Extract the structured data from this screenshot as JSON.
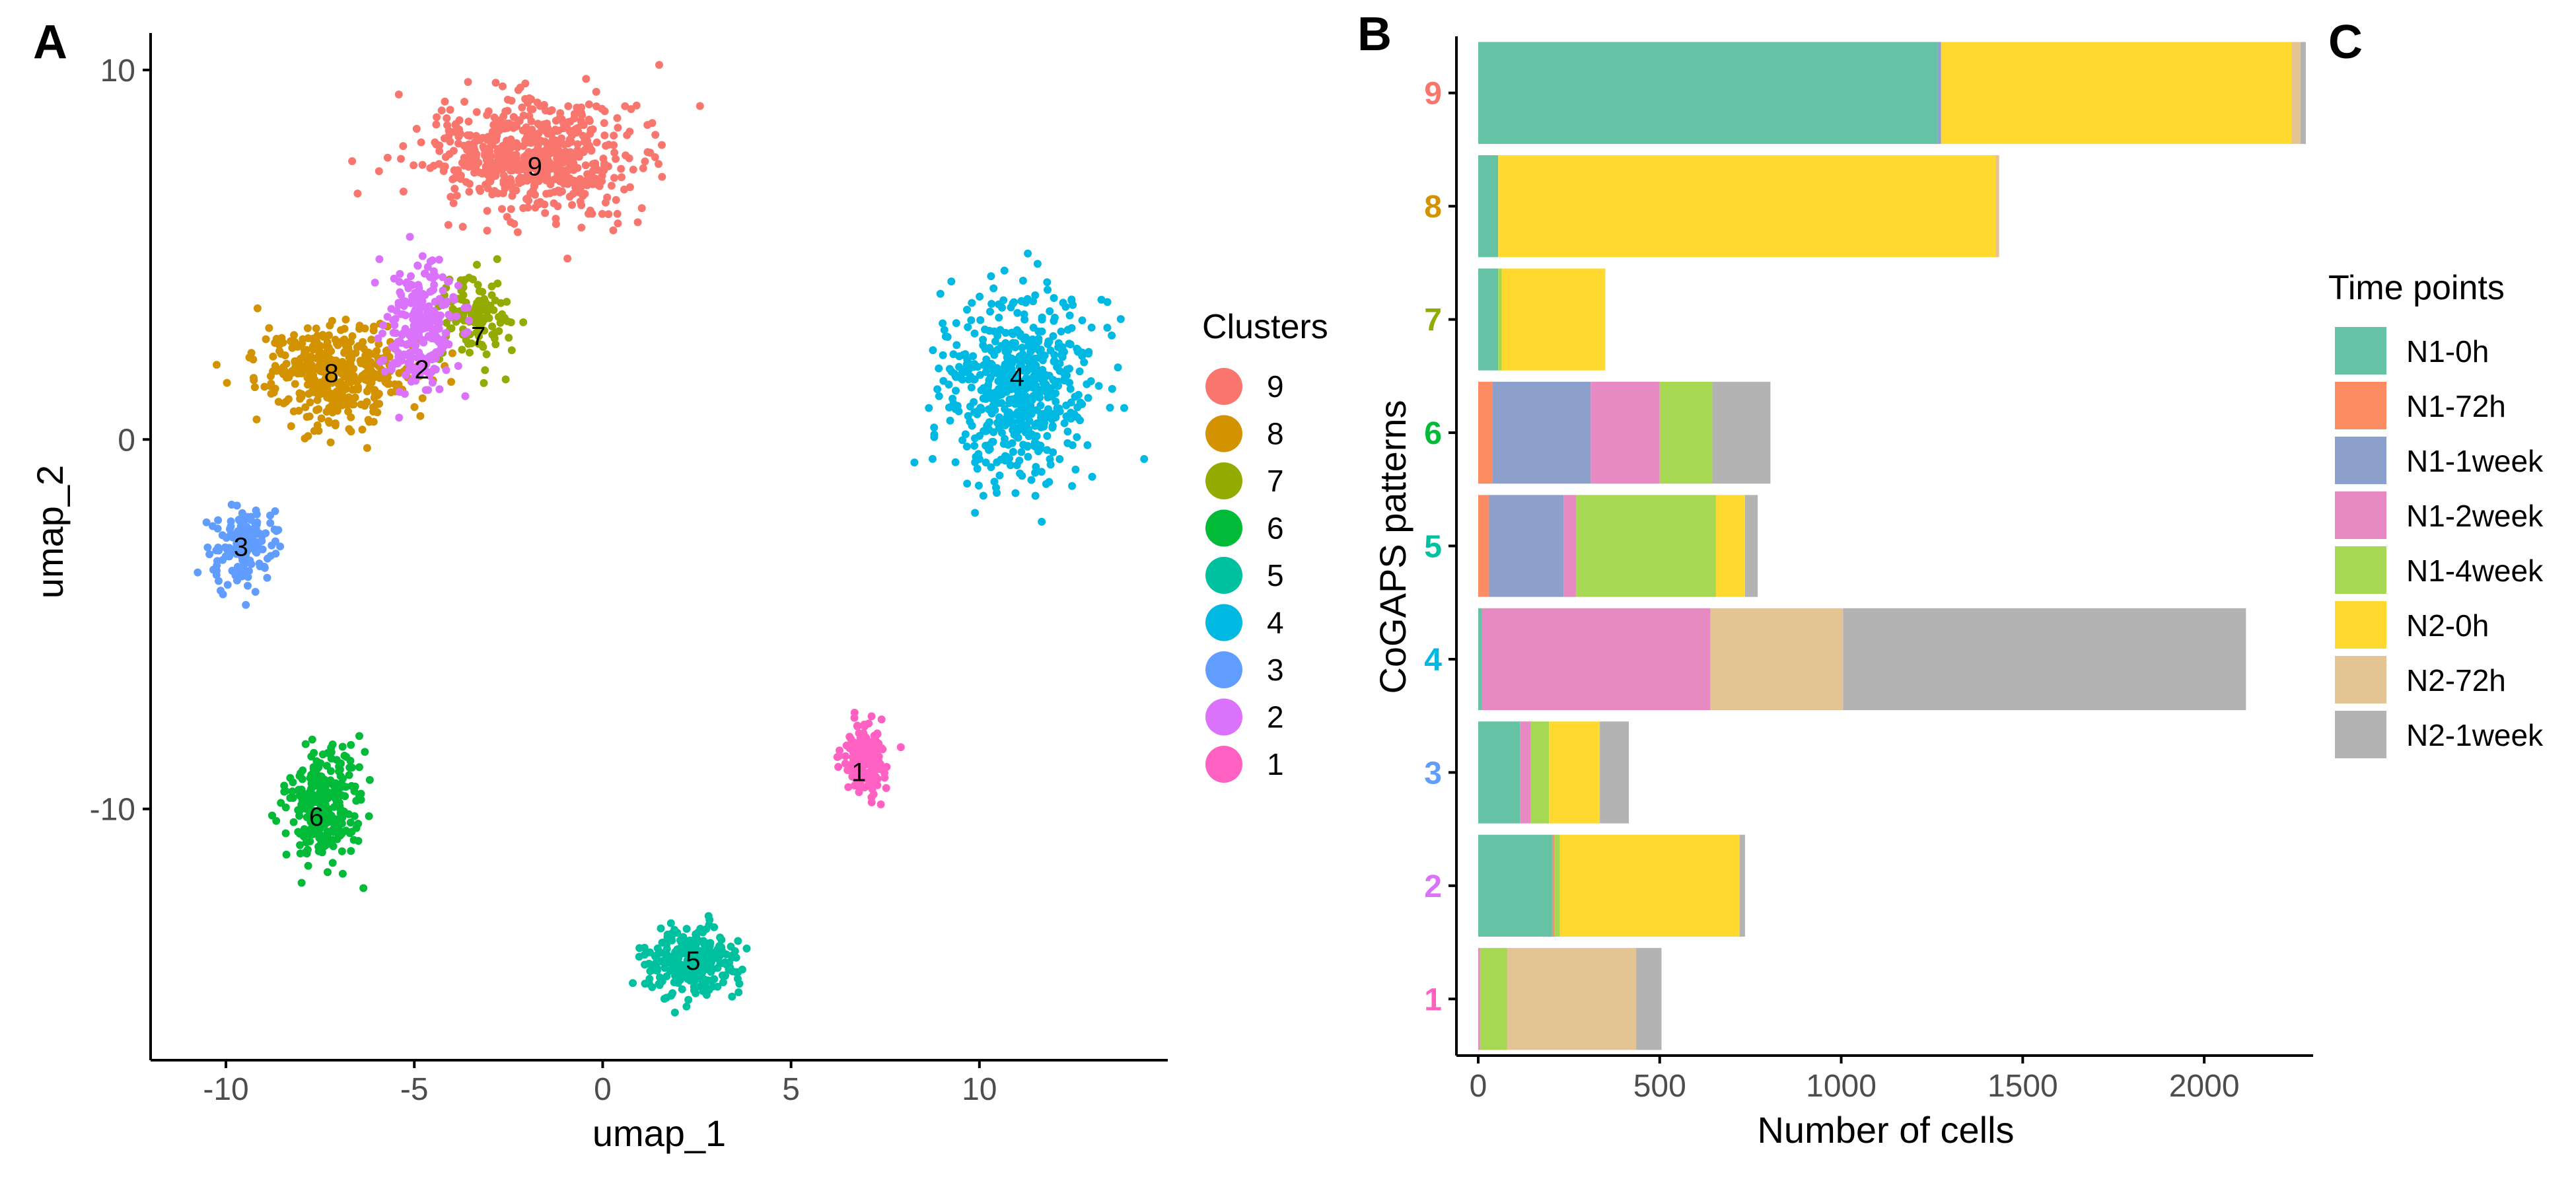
{
  "figure": {
    "panel_a": "A",
    "panel_b": "B",
    "panel_c": "C"
  },
  "colors": {
    "clusters": {
      "9": "#F8766D",
      "8": "#D39200",
      "7": "#93AA00",
      "6": "#00BA38",
      "5": "#00C19F",
      "4": "#00B9E3",
      "3": "#619CFF",
      "2": "#DB72FB",
      "1": "#FF61C3"
    },
    "time_points": {
      "N1-0h": "#66C2A5",
      "N1-72h": "#FC8D62",
      "N1-1week": "#8DA0CB",
      "N1-2week": "#E78AC3",
      "N1-4week": "#A6D854",
      "N2-0h": "#FFD92F",
      "N2-72h": "#E5C494",
      "N2-1week": "#B3B3B3"
    }
  },
  "chart_data": [
    {
      "type": "scatter",
      "xlabel": "umap_1",
      "ylabel": "umap_2",
      "xlim": [
        -12,
        15
      ],
      "ylim": [
        -16.8,
        11
      ],
      "xticks": [
        "-10",
        "-5",
        "0",
        "5",
        "10"
      ],
      "yticks": [
        "10",
        "0",
        "-10"
      ],
      "legend_title": "Clusters",
      "legend_position": "right",
      "legend": [
        "9",
        "8",
        "7",
        "6",
        "5",
        "4",
        "3",
        "2",
        "1"
      ],
      "clusters": [
        {
          "name": "9",
          "center": [
            -1.8,
            7.6
          ],
          "label_at": [
            -1.8,
            7.4
          ],
          "spread": [
            2.8,
            1.5
          ],
          "points": 650
        },
        {
          "name": "8",
          "center": [
            -7.1,
            1.8
          ],
          "label_at": [
            -7.2,
            1.8
          ],
          "spread": [
            2.1,
            1.3
          ],
          "points": 420
        },
        {
          "name": "7",
          "center": [
            -3.4,
            3.4
          ],
          "label_at": [
            -3.3,
            2.8
          ],
          "spread": [
            0.9,
            1.1
          ],
          "points": 120
        },
        {
          "name": "6",
          "center": [
            -7.4,
            -9.9
          ],
          "label_at": [
            -7.6,
            -10.2
          ],
          "spread": [
            0.9,
            1.5
          ],
          "points": 300
        },
        {
          "name": "5",
          "center": [
            2.4,
            -14.1
          ],
          "label_at": [
            2.4,
            -14.1
          ],
          "spread": [
            1.2,
            1.0
          ],
          "points": 260
        },
        {
          "name": "4",
          "center": [
            11.1,
            1.4
          ],
          "label_at": [
            11.0,
            1.7
          ],
          "spread": [
            1.9,
            2.5
          ],
          "points": 600
        },
        {
          "name": "3",
          "center": [
            -9.5,
            -2.8
          ],
          "label_at": [
            -9.6,
            -2.9
          ],
          "spread": [
            0.8,
            1.1
          ],
          "points": 150
        },
        {
          "name": "2",
          "center": [
            -4.8,
            3.0
          ],
          "label_at": [
            -4.8,
            1.9
          ],
          "spread": [
            0.9,
            1.7
          ],
          "points": 260
        },
        {
          "name": "1",
          "center": [
            7.0,
            -8.6
          ],
          "label_at": [
            6.8,
            -9.0
          ],
          "spread": [
            0.6,
            0.9
          ],
          "points": 170
        }
      ]
    },
    {
      "type": "bar",
      "orientation": "horizontal",
      "stacked": true,
      "xlabel": "Number of cells",
      "ylabel": "CoGAPS patterns",
      "xlim": [
        -60,
        2300
      ],
      "xticks": [
        0,
        500,
        1000,
        1500,
        2000
      ],
      "categories": [
        "9",
        "8",
        "7",
        "6",
        "5",
        "4",
        "3",
        "2",
        "1"
      ],
      "legend_title": "Time points",
      "legend_position": "right",
      "series": [
        {
          "name": "N1-0h",
          "values": [
            1265,
            55,
            55,
            0,
            0,
            10,
            115,
            205,
            0
          ]
        },
        {
          "name": "N1-72h",
          "values": [
            0,
            0,
            0,
            40,
            30,
            0,
            0,
            5,
            0
          ]
        },
        {
          "name": "N1-1week",
          "values": [
            10,
            0,
            0,
            270,
            205,
            0,
            0,
            0,
            0
          ]
        },
        {
          "name": "N1-2week",
          "values": [
            0,
            0,
            0,
            190,
            35,
            630,
            30,
            0,
            5
          ]
        },
        {
          "name": "N1-4week",
          "values": [
            0,
            0,
            10,
            145,
            385,
            0,
            50,
            15,
            75
          ]
        },
        {
          "name": "N2-0h",
          "values": [
            965,
            1370,
            285,
            0,
            80,
            0,
            140,
            495,
            0
          ]
        },
        {
          "name": "N2-72h",
          "values": [
            25,
            10,
            0,
            0,
            0,
            365,
            0,
            0,
            355
          ]
        },
        {
          "name": "N2-1week",
          "values": [
            15,
            0,
            0,
            160,
            35,
            1110,
            80,
            15,
            70
          ]
        }
      ]
    }
  ]
}
